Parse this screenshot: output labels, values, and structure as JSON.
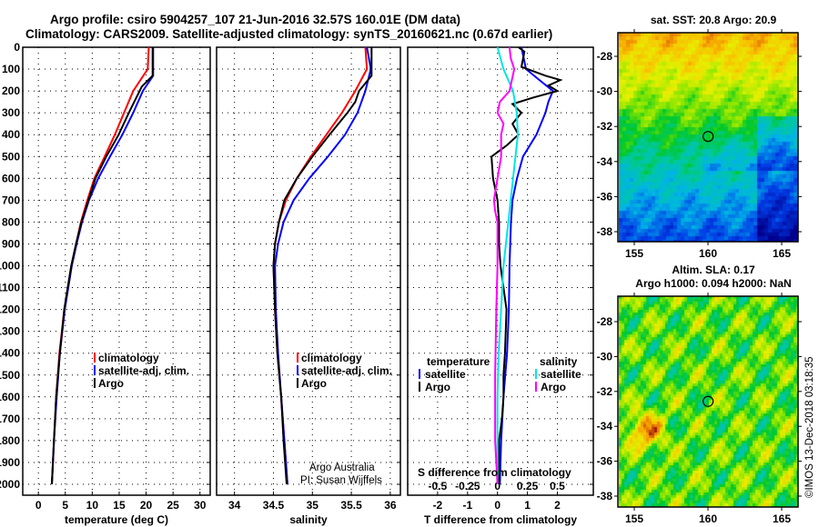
{
  "title_line1": "Argo profile: csiro 5904257_107 21-Jun-2016 32.57S 160.01E (DM data)",
  "title_line2": "Climatology: CARS2009. Satellite-adjusted climatology: synTS_20160621.nc (0.67d earlier)",
  "colors": {
    "climatology": "#ff0000",
    "satellite": "#0000ff",
    "argo": "#000000",
    "sal_satellite": "#00e5e5",
    "sal_argo": "#ff00ff"
  },
  "depth_ticks": [
    "0",
    "100",
    "200",
    "300",
    "400",
    "500",
    "600",
    "700",
    "800",
    "900",
    "1000",
    "1100",
    "1200",
    "1300",
    "1400",
    "1500",
    "1600",
    "1700",
    "1800",
    "1900",
    "2000"
  ],
  "chart_data": [
    {
      "type": "line",
      "xlabel": "temperature (deg C)",
      "ylabel": "",
      "xlim": [
        -2.9,
        31.9
      ],
      "ylim": [
        2050,
        0
      ],
      "xticks": [
        "0",
        "5",
        "10",
        "15",
        "20",
        "25",
        "30"
      ],
      "legend": {
        "placement": "bottom-right",
        "entries": [
          "climatology",
          "satellite-adj. clim.",
          "Argo"
        ]
      },
      "series": [
        {
          "name": "climatology",
          "color": "#ff0000",
          "depth": [
            0,
            100,
            200,
            300,
            400,
            500,
            600,
            700,
            800,
            900,
            1000,
            1200,
            1400,
            1600,
            1800,
            2000
          ],
          "values": [
            20.5,
            20.3,
            17.6,
            15.9,
            14.2,
            12.3,
            10.4,
            9.1,
            7.9,
            7.0,
            6.1,
            4.8,
            3.9,
            3.3,
            2.9,
            2.5
          ]
        },
        {
          "name": "satellite-adj. clim.",
          "color": "#0000ff",
          "depth": [
            0,
            130,
            200,
            300,
            400,
            500,
            600,
            700,
            800,
            900,
            1000,
            1200,
            1400,
            1600,
            1800,
            2000
          ],
          "values": [
            21.3,
            21.3,
            19.4,
            17.6,
            15.6,
            13.3,
            11.1,
            9.4,
            8.1,
            7.1,
            6.2,
            4.9,
            4.0,
            3.4,
            2.9,
            2.5
          ]
        },
        {
          "name": "Argo",
          "color": "#000000",
          "depth": [
            0,
            130,
            180,
            230,
            300,
            400,
            500,
            600,
            700,
            800,
            900,
            1000,
            1200,
            1400,
            1600,
            1800,
            2000
          ],
          "values": [
            21.2,
            21.2,
            19.2,
            18.2,
            16.8,
            14.9,
            12.6,
            10.6,
            9.3,
            8.0,
            7.0,
            6.1,
            4.8,
            4.0,
            3.3,
            2.9,
            2.5
          ]
        }
      ]
    },
    {
      "type": "line",
      "xlabel": "salinity",
      "ylabel": "",
      "xlim": [
        33.77,
        36.13
      ],
      "ylim": [
        2050,
        0
      ],
      "xticks": [
        "34",
        "34.5",
        "35",
        "35.5",
        "36"
      ],
      "legend": {
        "placement": "bottom-right",
        "entries": [
          "climatology",
          "satellite-adj. clim.",
          "Argo"
        ]
      },
      "annotation": [
        "Argo Australia",
        "PI: Susan Wijffels"
      ],
      "series": [
        {
          "name": "climatology",
          "color": "#ff0000",
          "depth": [
            0,
            100,
            200,
            300,
            400,
            500,
            600,
            700,
            800,
            900,
            1000,
            1200,
            1400,
            1600,
            1800,
            2000
          ],
          "values": [
            35.68,
            35.7,
            35.55,
            35.38,
            35.18,
            34.98,
            34.8,
            34.66,
            34.57,
            34.52,
            34.5,
            34.52,
            34.55,
            34.6,
            34.64,
            34.68
          ]
        },
        {
          "name": "satellite-adj. clim.",
          "color": "#0000ff",
          "depth": [
            0,
            100,
            200,
            300,
            400,
            500,
            600,
            700,
            800,
            900,
            1000,
            1200,
            1400,
            1600,
            1800,
            2000
          ],
          "values": [
            35.7,
            35.75,
            35.68,
            35.58,
            35.42,
            35.2,
            34.96,
            34.76,
            34.63,
            34.56,
            34.52,
            34.53,
            34.56,
            34.6,
            34.64,
            34.68
          ]
        },
        {
          "name": "Argo",
          "color": "#000000",
          "depth": [
            0,
            130,
            200,
            250,
            300,
            400,
            500,
            600,
            700,
            800,
            900,
            1000,
            1200,
            1400,
            1600,
            1800,
            2000
          ],
          "values": [
            35.76,
            35.76,
            35.6,
            35.55,
            35.45,
            35.22,
            35.0,
            34.8,
            34.64,
            34.57,
            34.52,
            34.5,
            34.52,
            34.55,
            34.6,
            34.63,
            34.67
          ]
        }
      ]
    },
    {
      "type": "line",
      "xlabel": "T difference from climatology",
      "xlabel2": "S difference from climatology",
      "xlim": [
        -3,
        3.2
      ],
      "ylim": [
        2050,
        0
      ],
      "xticks": [
        "-2",
        "-1",
        "0",
        "1",
        "2"
      ],
      "xticks2": [
        "-0.5",
        "-0.25",
        "0",
        "0.25",
        "0.5"
      ],
      "legend": {
        "placement": "bottom",
        "temperature_title": "temperature",
        "salinity_title": "salinity",
        "temperature_entries": [
          "satellite",
          "Argo"
        ],
        "salinity_entries": [
          "satellite",
          "Argo"
        ]
      },
      "series": [
        {
          "name": "T satellite",
          "color": "#0000ff",
          "units": "T",
          "depth": [
            0,
            100,
            150,
            200,
            250,
            300,
            400,
            500,
            600,
            700,
            800,
            1000,
            1200,
            1400,
            1600,
            1800,
            2000
          ],
          "values": [
            0.8,
            0.95,
            1.4,
            1.85,
            1.7,
            1.6,
            1.3,
            0.85,
            0.65,
            0.5,
            0.45,
            0.4,
            0.38,
            0.32,
            0.2,
            0.12,
            0.08
          ]
        },
        {
          "name": "T Argo",
          "color": "#000000",
          "units": "T",
          "depth": [
            0,
            20,
            90,
            130,
            150,
            175,
            200,
            230,
            260,
            300,
            350,
            400,
            450,
            500,
            600,
            700,
            800,
            900,
            1000,
            1200,
            1400,
            1500,
            1600,
            1700,
            1800,
            1900,
            2000
          ],
          "values": [
            0.7,
            0.9,
            0.8,
            1.6,
            2.1,
            1.7,
            2.0,
            1.2,
            0.5,
            0.8,
            0.5,
            0.7,
            0.3,
            -0.2,
            -0.15,
            0.0,
            0.05,
            0.05,
            0.1,
            0.3,
            0.25,
            0.2,
            0.2,
            0.15,
            0.05,
            0.05,
            0.05
          ]
        },
        {
          "name": "S satellite",
          "color": "#00e5e5",
          "units": "S",
          "depth": [
            0,
            100,
            200,
            300,
            400,
            600,
            800,
            1000,
            1200,
            1400,
            1600,
            1800,
            2000
          ],
          "values": [
            0.0,
            0.05,
            0.13,
            0.16,
            0.17,
            0.13,
            0.09,
            0.05,
            0.03,
            0.01,
            0.0,
            0.0,
            0.0
          ]
        },
        {
          "name": "S Argo",
          "color": "#ff00ff",
          "units": "S",
          "depth": [
            0,
            50,
            100,
            150,
            200,
            250,
            300,
            350,
            400,
            500,
            600,
            700,
            750,
            800,
            1000,
            1200,
            1500,
            1700,
            1800,
            2000
          ],
          "values": [
            0.1,
            0.11,
            0.14,
            0.12,
            0.1,
            0.02,
            0.0,
            0.05,
            0.03,
            0.03,
            0.0,
            -0.03,
            -0.02,
            0.0,
            0.0,
            -0.01,
            -0.02,
            -0.02,
            -0.02,
            0.0
          ]
        }
      ]
    }
  ],
  "maps": [
    {
      "title": "sat. SST: 20.8 Argo: 20.9",
      "lon_ticks": [
        "155",
        "160",
        "165"
      ],
      "lat_ticks": [
        "-28",
        "-30",
        "-32",
        "-34",
        "-36",
        "-38"
      ],
      "float_lon": 160.01,
      "float_lat": -32.57
    },
    {
      "title_line1": "Altim. SLA: 0.17",
      "title_line2": "Argo h1000: 0.094 h2000: NaN",
      "lon_ticks": [
        "155",
        "160",
        "165"
      ],
      "lat_ticks": [
        "-28",
        "-30",
        "-32",
        "-34",
        "-36",
        "-38"
      ],
      "float_lon": 160.01,
      "float_lat": -32.57
    }
  ],
  "watermark": "©IMOS 13-Dec-2018 03:18:35"
}
